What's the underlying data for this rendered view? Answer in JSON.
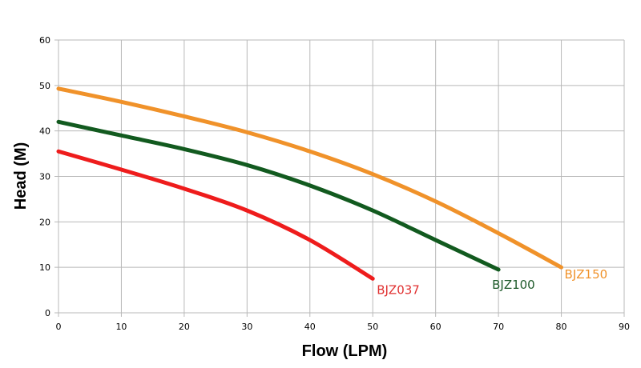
{
  "chart_data": {
    "type": "line",
    "title": "",
    "xlabel": "Flow (LPM)",
    "ylabel": "Head (M)",
    "xlim": [
      0,
      90
    ],
    "ylim": [
      0,
      60
    ],
    "xticks": [
      0,
      10,
      20,
      30,
      40,
      50,
      60,
      70,
      80,
      90
    ],
    "yticks": [
      0,
      10,
      20,
      30,
      40,
      50,
      60
    ],
    "grid": true,
    "legend": "none (series labelled at line ends)",
    "series": [
      {
        "name": "BJZ037",
        "color": "#ee1c1c",
        "label_color": "#e03030",
        "x": [
          0,
          10,
          20,
          30,
          40,
          50
        ],
        "y": [
          35.5,
          31.5,
          27.3,
          22.5,
          16,
          7.5
        ]
      },
      {
        "name": "BJZ100",
        "color": "#125a1f",
        "label_color": "#1e5a2a",
        "x": [
          0,
          10,
          20,
          30,
          40,
          50,
          60,
          70
        ],
        "y": [
          42,
          39,
          36,
          32.5,
          28,
          22.5,
          16,
          9.5
        ]
      },
      {
        "name": "BJZ150",
        "color": "#f0922a",
        "label_color": "#f0922a",
        "x": [
          0,
          10,
          20,
          30,
          40,
          50,
          60,
          70,
          80
        ],
        "y": [
          49.3,
          46.4,
          43.2,
          39.7,
          35.5,
          30.5,
          24.5,
          17.5,
          10
        ]
      }
    ]
  }
}
